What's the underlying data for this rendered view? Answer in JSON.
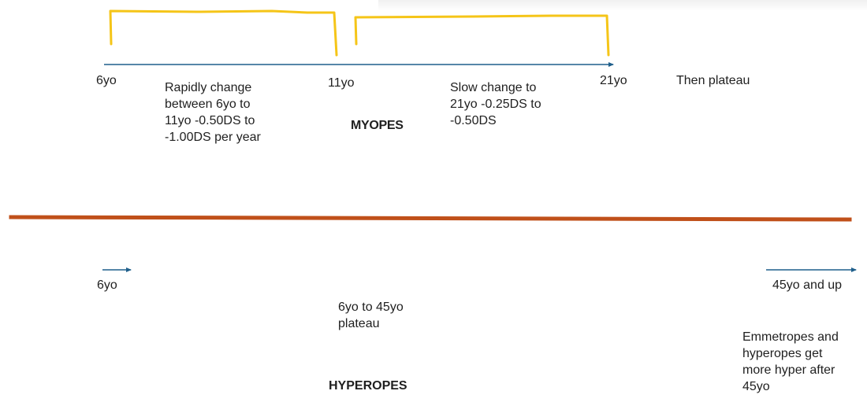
{
  "myopes": {
    "title": "MYOPES",
    "age_6": "6yo",
    "age_11": "11yo",
    "age_21": "21yo",
    "plateau": "Then plateau",
    "rapid_change": "Rapidly change\nbetween 6yo to\n11yo -0.50DS to\n-1.00DS per year",
    "slow_change": "Slow change to\n21yo -0.25DS to\n-0.50DS"
  },
  "hyperopes": {
    "title": "HYPEROPES",
    "age_6": "6yo",
    "age_45_up": "45yo and up",
    "plateau": "6yo to 45yo\nplateau",
    "emmetropes_note": "Emmetropes and\nhyperopes get\nmore hyper after\n45yo"
  },
  "colors": {
    "axis_arrow": "#1f5f8b",
    "bracket": "#f5c518",
    "divider": "#c0501a",
    "text": "#1f1f1f"
  }
}
